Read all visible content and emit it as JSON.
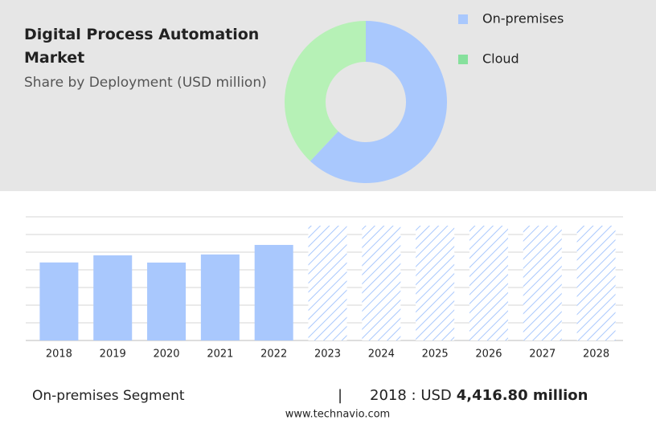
{
  "chart_data": [
    {
      "type": "donut",
      "title": "Digital Process Automation Market",
      "subtitle": "Share by Deployment (USD million)",
      "categories": [
        "On-premises",
        "Cloud"
      ],
      "values": [
        62,
        38
      ],
      "colors": [
        "#a9c8fd",
        "#b6f1b6"
      ],
      "legend_colors": [
        "#a9c8fd",
        "#86e09c"
      ]
    },
    {
      "type": "bar",
      "categories": [
        "2018",
        "2019",
        "2020",
        "2021",
        "2022",
        "2023",
        "2024",
        "2025",
        "2026",
        "2027",
        "2028"
      ],
      "values": [
        4416.8,
        4820,
        4410,
        4870,
        5410,
        null,
        null,
        null,
        null,
        null,
        null
      ],
      "color": "#a9c8fd",
      "ylim": [
        0,
        7000
      ],
      "grid": true
    }
  ],
  "highlight": {
    "segment": "On-premises Segment",
    "separator": "|",
    "year_label": "2018 : USD",
    "value": "4,416.80 million"
  },
  "footer": "www.technavio.com"
}
